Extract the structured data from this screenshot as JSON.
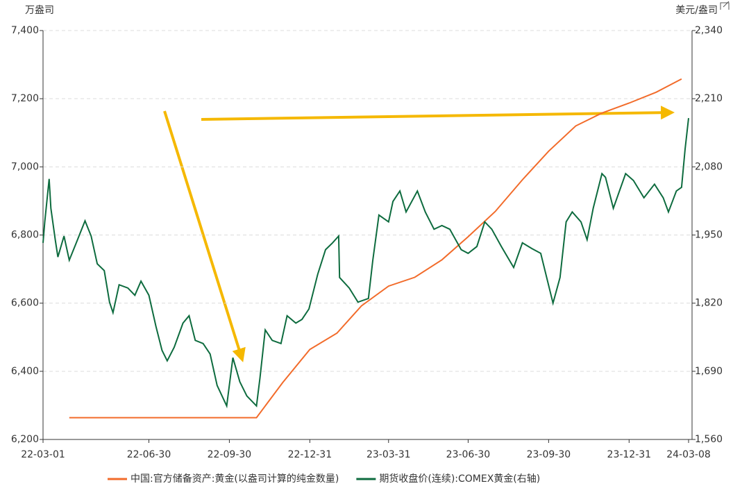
{
  "chart_data": {
    "type": "line",
    "y_unit": "万盎司",
    "y2_unit": "美元/盎司",
    "xlim": [
      "22-03-01",
      "24-03-08"
    ],
    "xticks": [
      "22-03-01",
      "22-06-30",
      "22-09-30",
      "22-12-31",
      "23-03-31",
      "23-06-30",
      "23-09-30",
      "23-12-31",
      "24-03-08"
    ],
    "ylim": [
      6200,
      7400
    ],
    "yticks": [
      {
        "value": 6200,
        "label": "6,200"
      },
      {
        "value": 6400,
        "label": "6,400"
      },
      {
        "value": 6600,
        "label": "6,600"
      },
      {
        "value": 6800,
        "label": "6,800"
      },
      {
        "value": 7000,
        "label": "7,000"
      },
      {
        "value": 7200,
        "label": "7,200"
      },
      {
        "value": 7400,
        "label": "7,400"
      }
    ],
    "y2lim": [
      1560,
      2340
    ],
    "y2ticks": [
      {
        "value": 1560,
        "label": "1,560"
      },
      {
        "value": 1690,
        "label": "1,690"
      },
      {
        "value": 1820,
        "label": "1,820"
      },
      {
        "value": 1950,
        "label": "1,950"
      },
      {
        "value": 2080,
        "label": "2,080"
      },
      {
        "value": 2210,
        "label": "2,210"
      },
      {
        "value": 2340,
        "label": "2,340"
      }
    ],
    "grid": true,
    "series": [
      {
        "name": "中国:官方储备资产:黄金(以盎司计算的纯金数量)",
        "color": "#f26b2a",
        "x": [
          "22-03-31",
          "22-04-30",
          "22-05-31",
          "22-06-30",
          "22-07-31",
          "22-08-31",
          "22-09-30",
          "22-10-31",
          "22-11-30",
          "22-12-31",
          "23-01-31",
          "23-02-28",
          "23-03-31",
          "23-04-30",
          "23-05-31",
          "23-06-30",
          "23-07-31",
          "23-08-31",
          "23-09-30",
          "23-10-31",
          "23-11-30",
          "23-12-31",
          "24-01-31",
          "24-02-29"
        ],
        "values": [
          6264,
          6264,
          6264,
          6264,
          6264,
          6264,
          6264,
          6264,
          6367,
          6464,
          6512,
          6592,
          6650,
          6676,
          6727,
          6795,
          6869,
          6962,
          7046,
          7120,
          7158,
          7187,
          7219,
          7258
        ]
      },
      {
        "name": "期货收盘价(连续):COMEX黄金(右轴)",
        "color": "#0d6b3e",
        "axis": "y2",
        "x": [
          "22-03-01",
          "22-03-03",
          "22-03-08",
          "22-03-10",
          "22-03-15",
          "22-03-18",
          "22-03-25",
          "22-03-31",
          "22-04-08",
          "22-04-18",
          "22-04-25",
          "22-05-02",
          "22-05-10",
          "22-05-16",
          "22-05-20",
          "22-05-27",
          "22-06-06",
          "22-06-14",
          "22-06-21",
          "22-06-30",
          "22-07-08",
          "22-07-15",
          "22-07-21",
          "22-07-29",
          "22-08-08",
          "22-08-15",
          "22-08-22",
          "22-08-31",
          "22-09-08",
          "22-09-16",
          "22-09-27",
          "22-10-04",
          "22-10-12",
          "22-10-20",
          "22-10-31",
          "22-11-04",
          "22-11-10",
          "22-11-18",
          "22-11-28",
          "22-12-05",
          "22-12-15",
          "22-12-22",
          "22-12-30",
          "23-01-09",
          "23-01-18",
          "23-01-26",
          "23-02-02",
          "23-02-03",
          "23-02-14",
          "23-02-24",
          "23-03-08",
          "23-03-13",
          "23-03-20",
          "23-03-31",
          "23-04-05",
          "23-04-13",
          "23-04-20",
          "23-05-03",
          "23-05-12",
          "23-05-22",
          "23-05-31",
          "23-06-09",
          "23-06-22",
          "23-06-30",
          "23-07-10",
          "23-07-19",
          "23-07-27",
          "23-08-07",
          "23-08-21",
          "23-08-31",
          "23-09-11",
          "23-09-21",
          "23-10-05",
          "23-10-13",
          "23-10-20",
          "23-10-27",
          "23-11-06",
          "23-11-13",
          "23-11-20",
          "23-11-30",
          "23-12-04",
          "23-12-13",
          "23-12-27",
          "24-01-05",
          "24-01-17",
          "24-01-29",
          "24-02-08",
          "24-02-14",
          "24-02-23",
          "24-02-29",
          "24-03-04",
          "24-03-08"
        ],
        "values": [
          1935,
          1975,
          2057,
          2001,
          1941,
          1908,
          1948,
          1902,
          1935,
          1977,
          1948,
          1895,
          1882,
          1822,
          1802,
          1855,
          1849,
          1835,
          1862,
          1835,
          1776,
          1730,
          1710,
          1736,
          1782,
          1796,
          1749,
          1743,
          1723,
          1663,
          1624,
          1716,
          1670,
          1643,
          1624,
          1677,
          1769,
          1749,
          1743,
          1796,
          1782,
          1789,
          1809,
          1875,
          1922,
          1935,
          1948,
          1869,
          1849,
          1822,
          1829,
          1902,
          1988,
          1975,
          2014,
          2034,
          1994,
          2034,
          1994,
          1961,
          1968,
          1961,
          1922,
          1915,
          1928,
          1975,
          1961,
          1928,
          1888,
          1935,
          1924,
          1915,
          1820,
          1869,
          1975,
          1994,
          1975,
          1941,
          2001,
          2067,
          2060,
          2001,
          2067,
          2054,
          2021,
          2047,
          2021,
          1994,
          2034,
          2041,
          2114,
          2173
        ]
      }
    ]
  }
}
